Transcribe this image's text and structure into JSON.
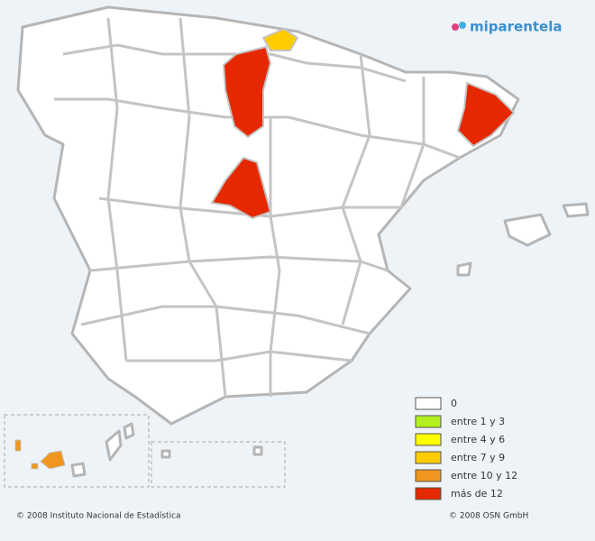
{
  "logo": "miparentela",
  "legend": {
    "items": [
      {
        "label": "0",
        "color": "#ffffff"
      },
      {
        "label": "entre 1 y 3",
        "color": "#b4f01e"
      },
      {
        "label": "entre 4 y 6",
        "color": "#ffff00"
      },
      {
        "label": "entre 7 y 9",
        "color": "#ffcc00"
      },
      {
        "label": "entre 10 y 12",
        "color": "#f0961e"
      },
      {
        "label": "más de 12",
        "color": "#e62800"
      }
    ]
  },
  "footer": {
    "left": "© 2008 Instituto Nacional de Estadística",
    "right": "© 2008 OSN GmbH"
  }
}
